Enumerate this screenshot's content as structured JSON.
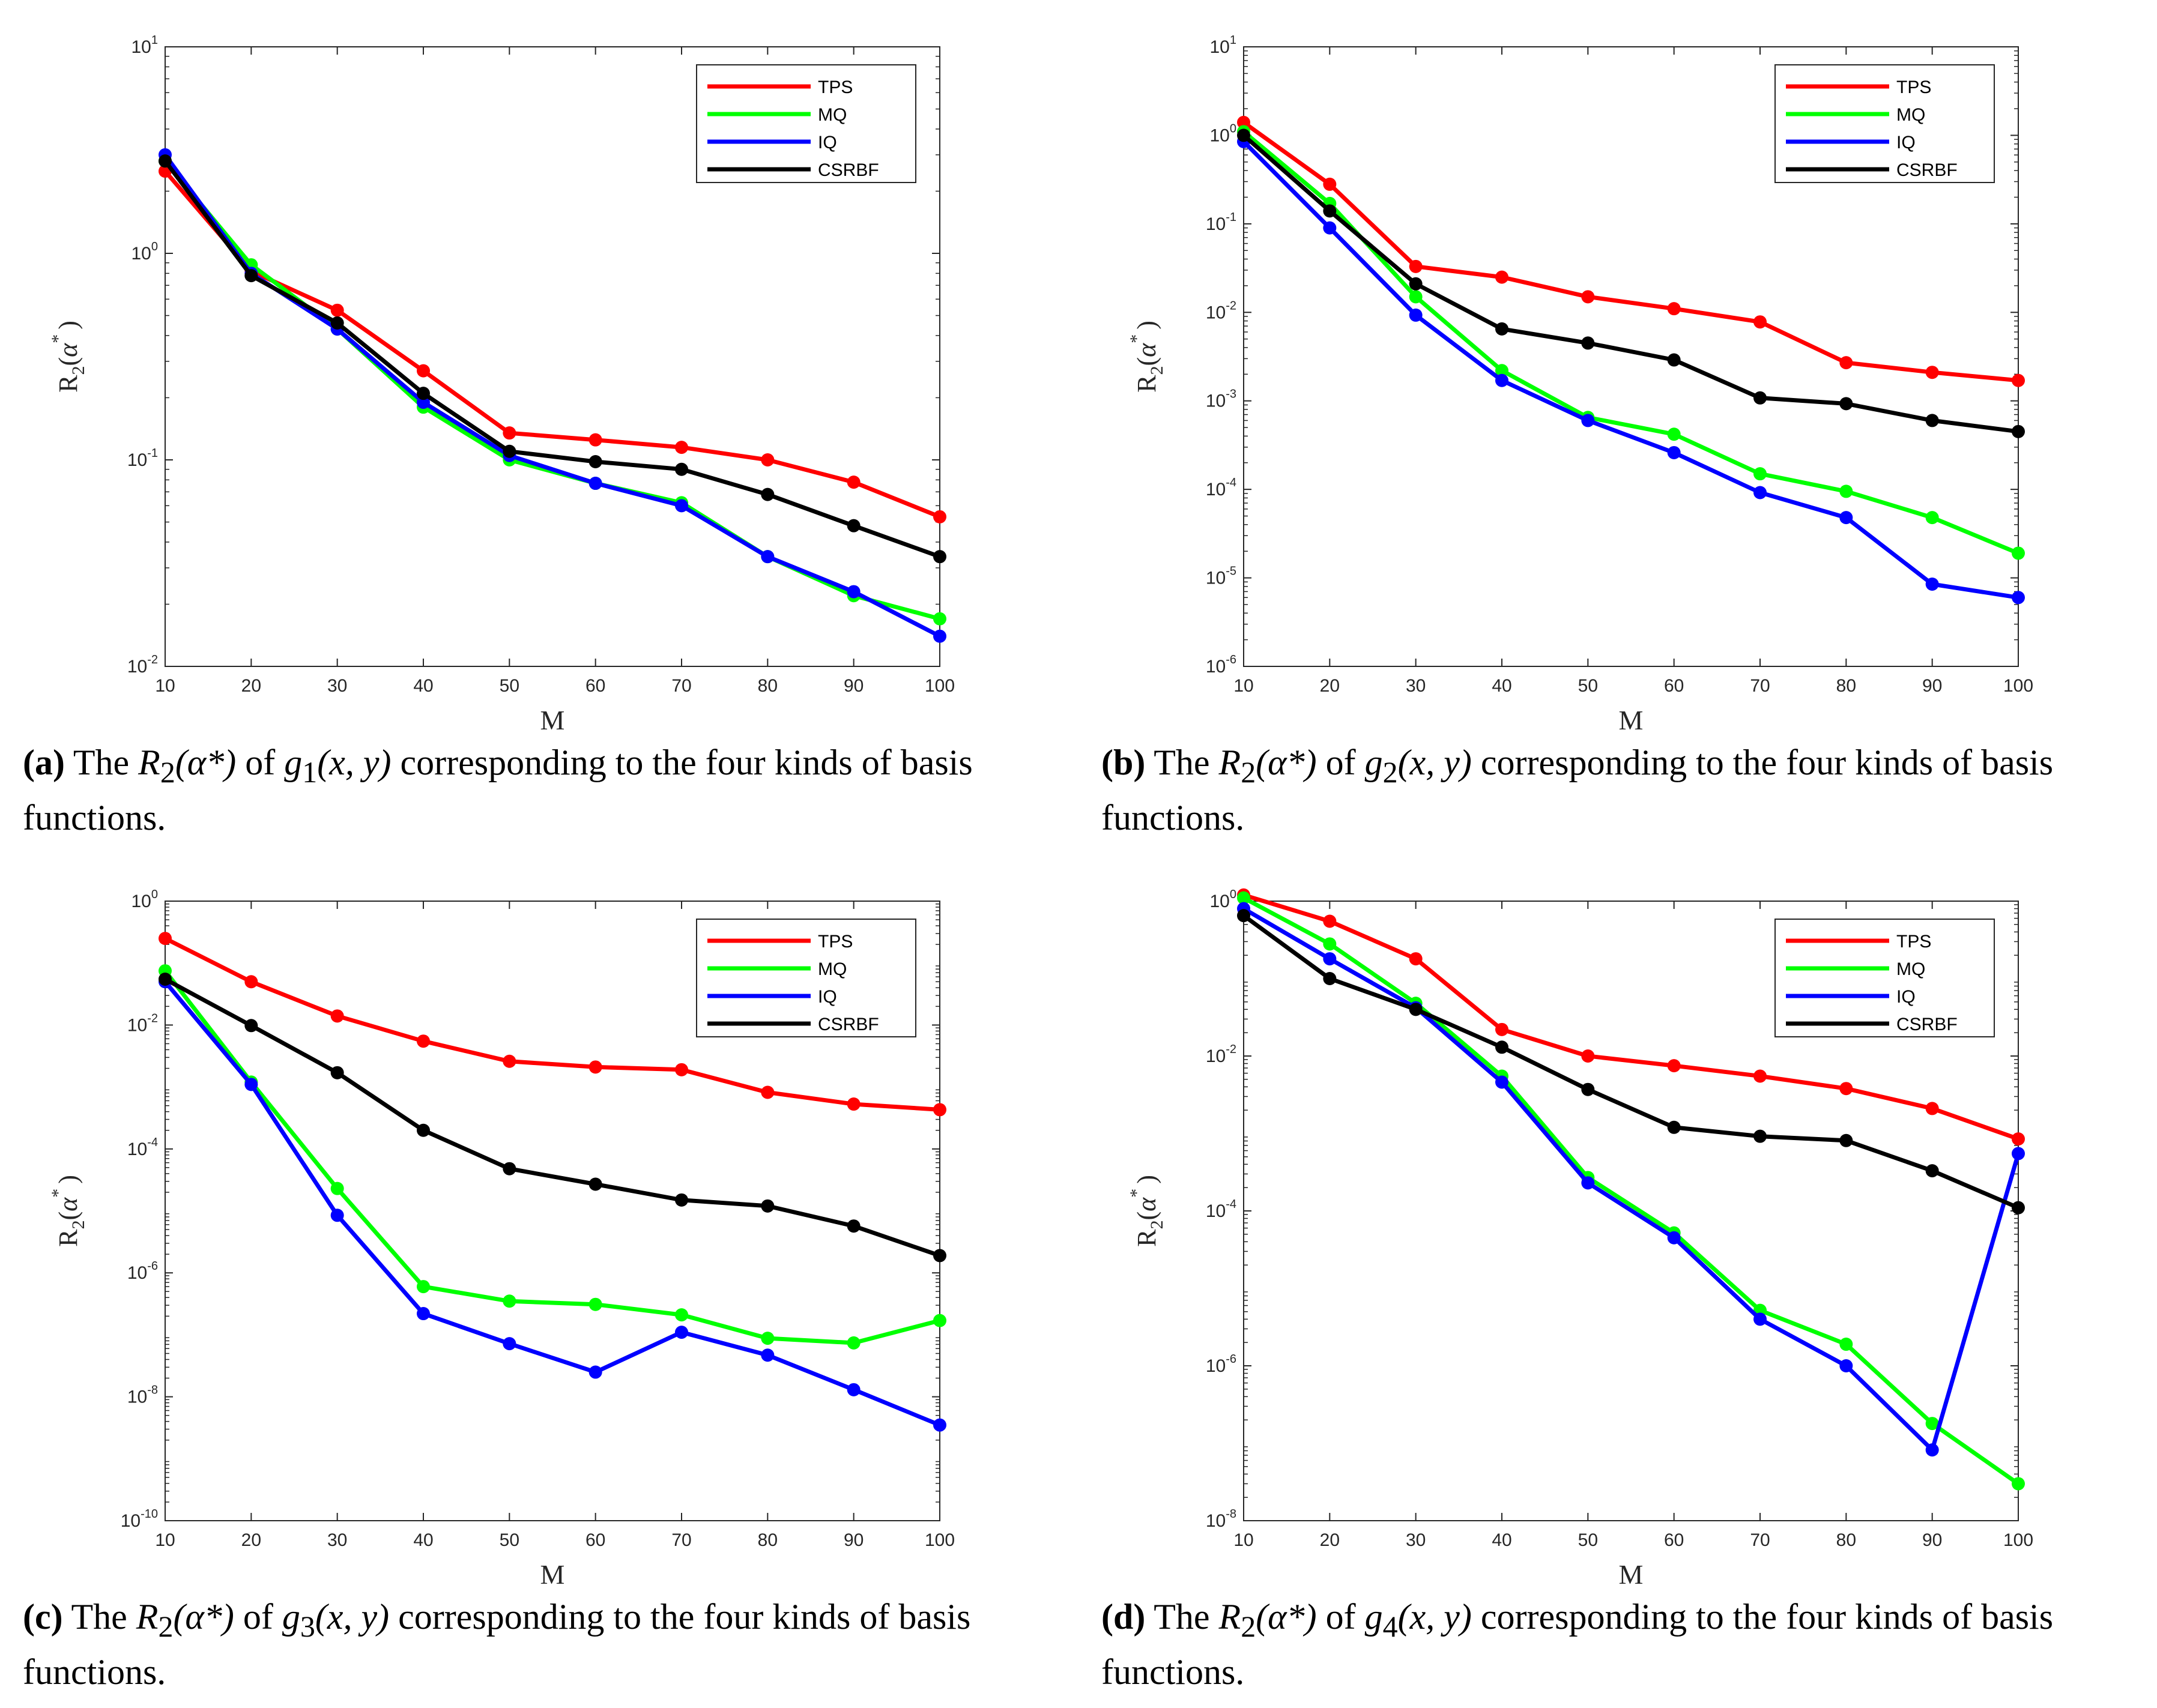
{
  "chart_data": [
    {
      "type": "line",
      "panel": "a",
      "yscale": "log",
      "ylim_exp": [
        -2,
        1
      ],
      "ytick_exponents": [
        "-2",
        "-1",
        "0",
        "1"
      ],
      "x": [
        10,
        20,
        30,
        40,
        50,
        60,
        70,
        80,
        90,
        100
      ],
      "xticks": [
        "10",
        "20",
        "30",
        "40",
        "50",
        "60",
        "70",
        "80",
        "90",
        "100"
      ],
      "xlabel": "M",
      "ylabel": {
        "main": "R",
        "sub": "2",
        "open": "(",
        "greek": "α",
        "star": "*",
        "close": ")"
      },
      "legend_position": "top-right",
      "series": [
        {
          "name": "TPS",
          "color": "#ff0000",
          "values": [
            2.5,
            0.82,
            0.53,
            0.27,
            0.135,
            0.125,
            0.115,
            0.1,
            0.078,
            0.053
          ]
        },
        {
          "name": "MQ",
          "color": "#00ff00",
          "values": [
            2.8,
            0.88,
            0.43,
            0.18,
            0.1,
            0.077,
            0.062,
            0.034,
            0.022,
            0.017
          ]
        },
        {
          "name": "IQ",
          "color": "#0000ff",
          "values": [
            3.0,
            0.8,
            0.43,
            0.19,
            0.105,
            0.077,
            0.06,
            0.034,
            0.023,
            0.014
          ]
        },
        {
          "name": "CSRBF",
          "color": "#000000",
          "values": [
            2.8,
            0.78,
            0.46,
            0.21,
            0.11,
            0.098,
            0.09,
            0.068,
            0.048,
            0.034
          ]
        }
      ],
      "caption": {
        "letter": "(a)",
        "pre": "The ",
        "math1": "R",
        "sub1": "2",
        "math2": "(α*)",
        "mid": " of ",
        "math3": "g",
        "sub3": "1",
        "math4": "(x, y)",
        "post": " corresponding to the four kinds of basis functions."
      }
    },
    {
      "type": "line",
      "panel": "b",
      "yscale": "log",
      "ylim_exp": [
        -6,
        1
      ],
      "ytick_exponents": [
        "-6",
        "-5",
        "-4",
        "-3",
        "-2",
        "-1",
        "0",
        "1"
      ],
      "x": [
        10,
        20,
        30,
        40,
        50,
        60,
        70,
        80,
        90,
        100
      ],
      "xticks": [
        "10",
        "20",
        "30",
        "40",
        "50",
        "60",
        "70",
        "80",
        "90",
        "100"
      ],
      "xlabel": "M",
      "ylabel": {
        "main": "R",
        "sub": "2",
        "open": "(",
        "greek": "α",
        "star": "*",
        "close": ")"
      },
      "legend_position": "top-right",
      "series": [
        {
          "name": "TPS",
          "color": "#ff0000",
          "values": [
            1.4,
            0.28,
            0.033,
            0.025,
            0.015,
            0.011,
            0.0078,
            0.0027,
            0.0021,
            0.0017
          ]
        },
        {
          "name": "MQ",
          "color": "#00ff00",
          "values": [
            1.1,
            0.17,
            0.015,
            0.0022,
            0.00065,
            0.00042,
            0.00015,
            9.5e-05,
            4.8e-05,
            1.9e-05
          ]
        },
        {
          "name": "IQ",
          "color": "#0000ff",
          "values": [
            0.85,
            0.09,
            0.0093,
            0.0017,
            0.0006,
            0.00026,
            9.2e-05,
            4.8e-05,
            8.5e-06,
            6e-06
          ]
        },
        {
          "name": "CSRBF",
          "color": "#000000",
          "values": [
            1.0,
            0.14,
            0.021,
            0.0065,
            0.0045,
            0.0029,
            0.00108,
            0.00093,
            0.0006,
            0.00045
          ]
        }
      ],
      "caption": {
        "letter": "(b)",
        "pre": "The ",
        "math1": "R",
        "sub1": "2",
        "math2": "(α*)",
        "mid": " of ",
        "math3": "g",
        "sub3": "2",
        "math4": "(x, y)",
        "post": " corresponding to the four kinds of basis functions."
      }
    },
    {
      "type": "line",
      "panel": "c",
      "yscale": "log",
      "ylim_exp": [
        -10,
        0
      ],
      "ytick_exponents": [
        "-10",
        "-8",
        "-6",
        "-4",
        "-2",
        "0"
      ],
      "x": [
        10,
        20,
        30,
        40,
        50,
        60,
        70,
        80,
        90,
        100
      ],
      "xticks": [
        "10",
        "20",
        "30",
        "40",
        "50",
        "60",
        "70",
        "80",
        "90",
        "100"
      ],
      "xlabel": "M",
      "ylabel": {
        "main": "R",
        "sub": "2",
        "open": "(",
        "greek": "α",
        "star": "*",
        "close": ")"
      },
      "legend_position": "top-right",
      "series": [
        {
          "name": "TPS",
          "color": "#ff0000",
          "values": [
            0.25,
            0.05,
            0.014,
            0.0055,
            0.0026,
            0.0021,
            0.0019,
            0.00082,
            0.00053,
            0.00043
          ]
        },
        {
          "name": "MQ",
          "color": "#00ff00",
          "values": [
            0.075,
            0.0012,
            2.3e-05,
            6e-07,
            3.5e-07,
            3.1e-07,
            2.1e-07,
            8.8e-08,
            7.4e-08,
            1.7e-07
          ]
        },
        {
          "name": "IQ",
          "color": "#0000ff",
          "values": [
            0.05,
            0.0011,
            8.5e-06,
            2.2e-07,
            7.2e-08,
            2.5e-08,
            1.1e-07,
            4.7e-08,
            1.3e-08,
            3.5e-09
          ]
        },
        {
          "name": "CSRBF",
          "color": "#000000",
          "values": [
            0.055,
            0.0098,
            0.0017,
            0.0002,
            4.8e-05,
            2.7e-05,
            1.5e-05,
            1.2e-05,
            5.7e-06,
            1.9e-06
          ]
        }
      ],
      "caption": {
        "letter": "(c)",
        "pre": "The ",
        "math1": "R",
        "sub1": "2",
        "math2": "(α*)",
        "mid": " of ",
        "math3": "g",
        "sub3": "3",
        "math4": "(x, y)",
        "post": " corresponding to the four kinds of basis functions."
      }
    },
    {
      "type": "line",
      "panel": "d",
      "yscale": "log",
      "ylim_exp": [
        -8,
        0
      ],
      "ytick_exponents": [
        "-8",
        "-6",
        "-4",
        "-2",
        "0"
      ],
      "x": [
        10,
        20,
        30,
        40,
        50,
        60,
        70,
        80,
        90,
        100
      ],
      "xticks": [
        "10",
        "20",
        "30",
        "40",
        "50",
        "60",
        "70",
        "80",
        "90",
        "100"
      ],
      "xlabel": "M",
      "ylabel": {
        "main": "R",
        "sub": "2",
        "open": "(",
        "greek": "α",
        "star": "*",
        "close": ")"
      },
      "legend_position": "top-right",
      "series": [
        {
          "name": "TPS",
          "color": "#ff0000",
          "values": [
            1.2,
            0.55,
            0.18,
            0.022,
            0.01,
            0.0075,
            0.0055,
            0.0038,
            0.0021,
            0.00085
          ]
        },
        {
          "name": "MQ",
          "color": "#00ff00",
          "values": [
            1.1,
            0.28,
            0.048,
            0.0055,
            0.00027,
            5.2e-05,
            5.2e-06,
            1.9e-06,
            1.8e-07,
            3e-08
          ]
        },
        {
          "name": "IQ",
          "color": "#0000ff",
          "values": [
            0.8,
            0.18,
            0.042,
            0.0046,
            0.00023,
            4.5e-05,
            4e-06,
            1e-06,
            8.2e-08,
            0.00055
          ]
        },
        {
          "name": "CSRBF",
          "color": "#000000",
          "values": [
            0.65,
            0.1,
            0.04,
            0.013,
            0.0037,
            0.0012,
            0.00092,
            0.00081,
            0.00033,
            0.00011
          ]
        }
      ],
      "caption": {
        "letter": "(d)",
        "pre": "The ",
        "math1": "R",
        "sub1": "2",
        "math2": "(α*)",
        "mid": " of ",
        "math3": "g",
        "sub3": "4",
        "math4": "(x, y)",
        "post": " corresponding to the four kinds of basis functions."
      }
    }
  ]
}
